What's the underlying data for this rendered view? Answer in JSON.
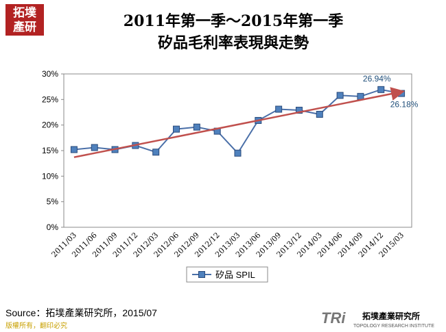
{
  "logo": [
    "拓墣",
    "產研"
  ],
  "source": "Source：拓墣產業研究所，2015/07",
  "copyright": "版權所有，翻印必究",
  "brand": {
    "mark": "TRi",
    "name": "拓墣產業研究所",
    "english": "TOPOLOGY RESEARCH INSTITUTE"
  },
  "chart_data": {
    "type": "line",
    "title": [
      "2011年第一季～2015年第一季",
      "矽品毛利率表現與走勢"
    ],
    "categories": [
      "2011/03",
      "2011/06",
      "2011/09",
      "2011/12",
      "2012/03",
      "2012/06",
      "2012/09",
      "2012/12",
      "2013/03",
      "2013/06",
      "2013/09",
      "2013/12",
      "2014/03",
      "2014/06",
      "2014/09",
      "2014/12",
      "2015/03"
    ],
    "series": [
      {
        "name": "矽品 SPIL",
        "color": "#4a6fa8",
        "values": [
          15.2,
          15.6,
          15.2,
          16.0,
          14.7,
          19.2,
          19.6,
          18.8,
          14.5,
          20.9,
          23.1,
          22.9,
          22.1,
          25.8,
          25.6,
          26.94,
          26.18
        ],
        "value_labels": [
          null,
          null,
          null,
          null,
          null,
          null,
          null,
          null,
          null,
          null,
          null,
          null,
          null,
          null,
          null,
          "26.94%",
          "26.18%"
        ]
      }
    ],
    "trendline": {
      "start": 13.7,
      "end": 26.5,
      "color": "#c0504d"
    },
    "ylim": [
      0,
      30
    ],
    "yticks": [
      {
        "value": 0,
        "label": "0%"
      },
      {
        "value": 5,
        "label": "5%"
      },
      {
        "value": 10,
        "label": "10%"
      },
      {
        "value": 15,
        "label": "15%"
      },
      {
        "value": 20,
        "label": "20%"
      },
      {
        "value": 25,
        "label": "25%"
      },
      {
        "value": 30,
        "label": "30%"
      }
    ],
    "legend": "bottom"
  }
}
